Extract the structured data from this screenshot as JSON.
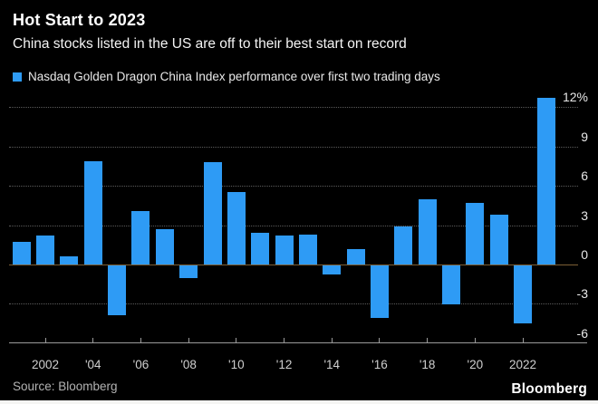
{
  "header": {
    "title": "Hot Start to 2023",
    "subtitle": "China stocks listed in the US are off to their best start on record"
  },
  "legend": {
    "label": "Nasdaq Golden Dragon China Index performance over first two trading days",
    "marker_color": "#2e9bf5"
  },
  "chart_data": {
    "type": "bar",
    "title": "Nasdaq Golden Dragon China Index performance over first two trading days",
    "categories": [
      2001,
      2002,
      2003,
      2004,
      2005,
      2006,
      2007,
      2008,
      2009,
      2010,
      2011,
      2012,
      2013,
      2014,
      2015,
      2016,
      2017,
      2018,
      2019,
      2020,
      2021,
      2022,
      2023
    ],
    "values": [
      1.7,
      2.2,
      0.6,
      7.9,
      -3.8,
      4.1,
      2.7,
      -1.0,
      7.8,
      5.5,
      2.4,
      2.2,
      2.3,
      -0.7,
      1.2,
      -4.0,
      2.9,
      5.0,
      -3.0,
      4.7,
      3.8,
      -4.4,
      12.7
    ],
    "xlabel": "",
    "ylabel": "%",
    "ylim": [
      -6,
      12.8
    ],
    "grid": "dotted horizontal",
    "legend_position": "top-left",
    "ytick_values": [
      12,
      9,
      6,
      3,
      0,
      -3,
      -6
    ],
    "ytick_labels": [
      "12%",
      "9",
      "6",
      "3",
      "0",
      "-3",
      "-6"
    ],
    "gridline_values": [
      12,
      9,
      6,
      3,
      -3
    ],
    "xtick_years": [
      2002,
      2004,
      2006,
      2008,
      2010,
      2012,
      2014,
      2016,
      2018,
      2020,
      2022
    ],
    "xtick_labels": [
      "2002",
      "'04",
      "'06",
      "'08",
      "'10",
      "'12",
      "'14",
      "'16",
      "'18",
      "'20",
      "2022"
    ],
    "bar_color": "#2e9bf5",
    "zero_line_color": "#7d5f35",
    "grid_color": "#5c5c5c",
    "axis_color": "#9b9b9b",
    "background_color": "#000000"
  },
  "footer": {
    "source": "Source: Bloomberg",
    "logo": "Bloomberg"
  }
}
